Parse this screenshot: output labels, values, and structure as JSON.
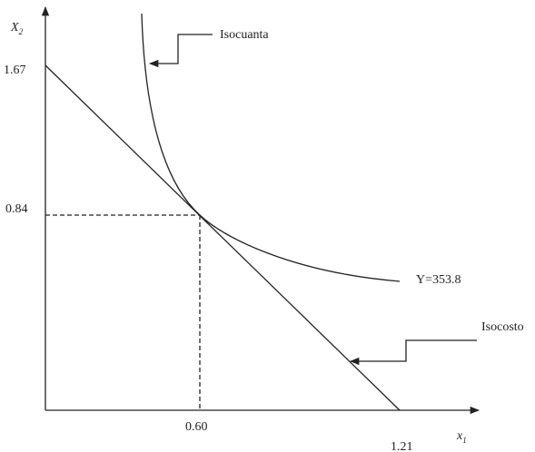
{
  "axes": {
    "y_label": {
      "text": "X",
      "subscript": "2"
    },
    "x_label": {
      "text": "x",
      "subscript": "1"
    }
  },
  "ticks": {
    "y_top": "1.67",
    "y_mid": "0.84",
    "x_mid": "0.60",
    "x_end": "1.21"
  },
  "curves": {
    "isoquant": "Isocuanta",
    "isoquant_value": "Y=353.8",
    "isocost": "Isocosto"
  }
}
